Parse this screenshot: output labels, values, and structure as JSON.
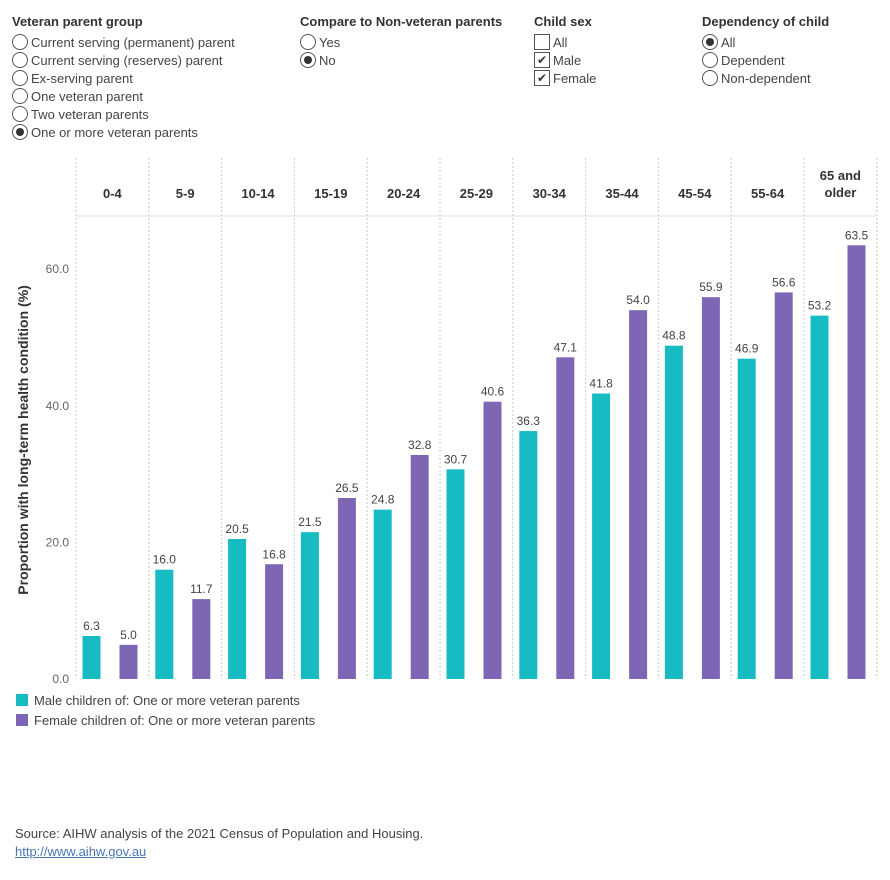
{
  "filters": {
    "veteran_group": {
      "title": "Veteran parent group",
      "options": [
        {
          "label": "Current serving (permanent) parent",
          "selected": false
        },
        {
          "label": "Current serving (reserves) parent",
          "selected": false
        },
        {
          "label": "Ex-serving parent",
          "selected": false
        },
        {
          "label": "One veteran parent",
          "selected": false
        },
        {
          "label": "Two veteran parents",
          "selected": false
        },
        {
          "label": "One or more veteran parents",
          "selected": true
        }
      ]
    },
    "compare": {
      "title": "Compare to Non-veteran parents",
      "options": [
        {
          "label": "Yes",
          "selected": false
        },
        {
          "label": "No",
          "selected": true
        }
      ]
    },
    "child_sex": {
      "title": "Child sex",
      "options": [
        {
          "label": "All",
          "checked": false
        },
        {
          "label": "Male",
          "checked": true
        },
        {
          "label": "Female",
          "checked": true
        }
      ]
    },
    "dependency": {
      "title": "Dependency of child",
      "options": [
        {
          "label": "All",
          "selected": true
        },
        {
          "label": "Dependent",
          "selected": false
        },
        {
          "label": "Non-dependent",
          "selected": false
        }
      ]
    }
  },
  "chart_data": {
    "type": "bar",
    "ylabel": "Proportion with long-term health condition (%)",
    "ylim": [
      0,
      70
    ],
    "yticks": [
      0,
      20,
      40,
      60
    ],
    "ytick_labels": [
      "0.0",
      "20.0",
      "40.0",
      "60.0"
    ],
    "grid": false,
    "categories": [
      "0-4",
      "5-9",
      "10-14",
      "15-19",
      "20-24",
      "25-29",
      "30-34",
      "35-44",
      "45-54",
      "55-64",
      "65 and older"
    ],
    "series": [
      {
        "name": "Male children of: One or more veteran parents",
        "color": "#17BCC3",
        "values": [
          6.3,
          16.0,
          20.5,
          21.5,
          24.8,
          30.7,
          36.3,
          41.8,
          48.8,
          46.9,
          53.2
        ],
        "labels": [
          "6.3",
          "16.0",
          "20.5",
          "21.5",
          "24.8",
          "30.7",
          "36.3",
          "41.8",
          "48.8",
          "46.9",
          "53.2"
        ]
      },
      {
        "name": "Female children of: One or more veteran parents",
        "color": "#7D67B5",
        "values": [
          5.0,
          11.7,
          16.8,
          26.5,
          32.8,
          40.6,
          47.1,
          54.0,
          55.9,
          56.6,
          63.5
        ],
        "labels": [
          "5.0",
          "11.7",
          "16.8",
          "26.5",
          "32.8",
          "40.6",
          "47.1",
          "54.0",
          "55.9",
          "56.6",
          "63.5"
        ]
      }
    ],
    "legend_position": "bottom-left"
  },
  "source": {
    "text": "Source: AIHW analysis of the 2021 Census of Population and Housing.",
    "link": "http://www.aihw.gov.au"
  }
}
